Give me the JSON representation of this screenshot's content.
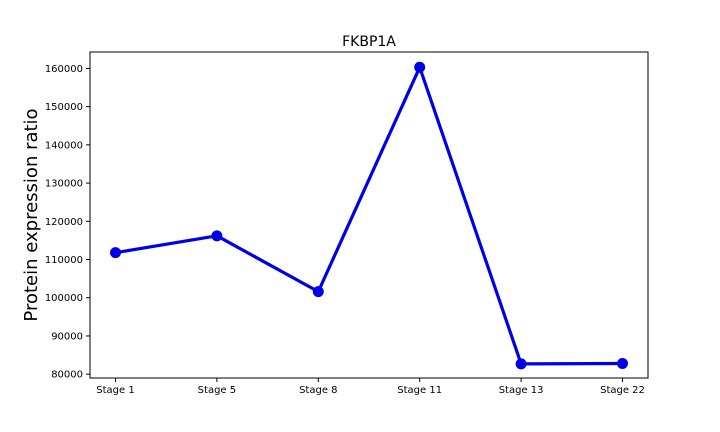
{
  "chart_data": {
    "type": "line",
    "title": "FKBP1A",
    "xlabel": "",
    "ylabel": "Protein expression ratio",
    "categories": [
      "Stage 1",
      "Stage 5",
      "Stage 8",
      "Stage 11",
      "Stage 13",
      "Stage 22"
    ],
    "series": [
      {
        "values": [
          111800,
          116200,
          101600,
          160300,
          82700,
          82800
        ],
        "color": "#0000e6"
      }
    ],
    "yticks": [
      80000,
      90000,
      100000,
      110000,
      120000,
      130000,
      140000,
      150000,
      160000
    ],
    "ylim": [
      79000,
      164300
    ],
    "grid": false,
    "legend": "none"
  }
}
